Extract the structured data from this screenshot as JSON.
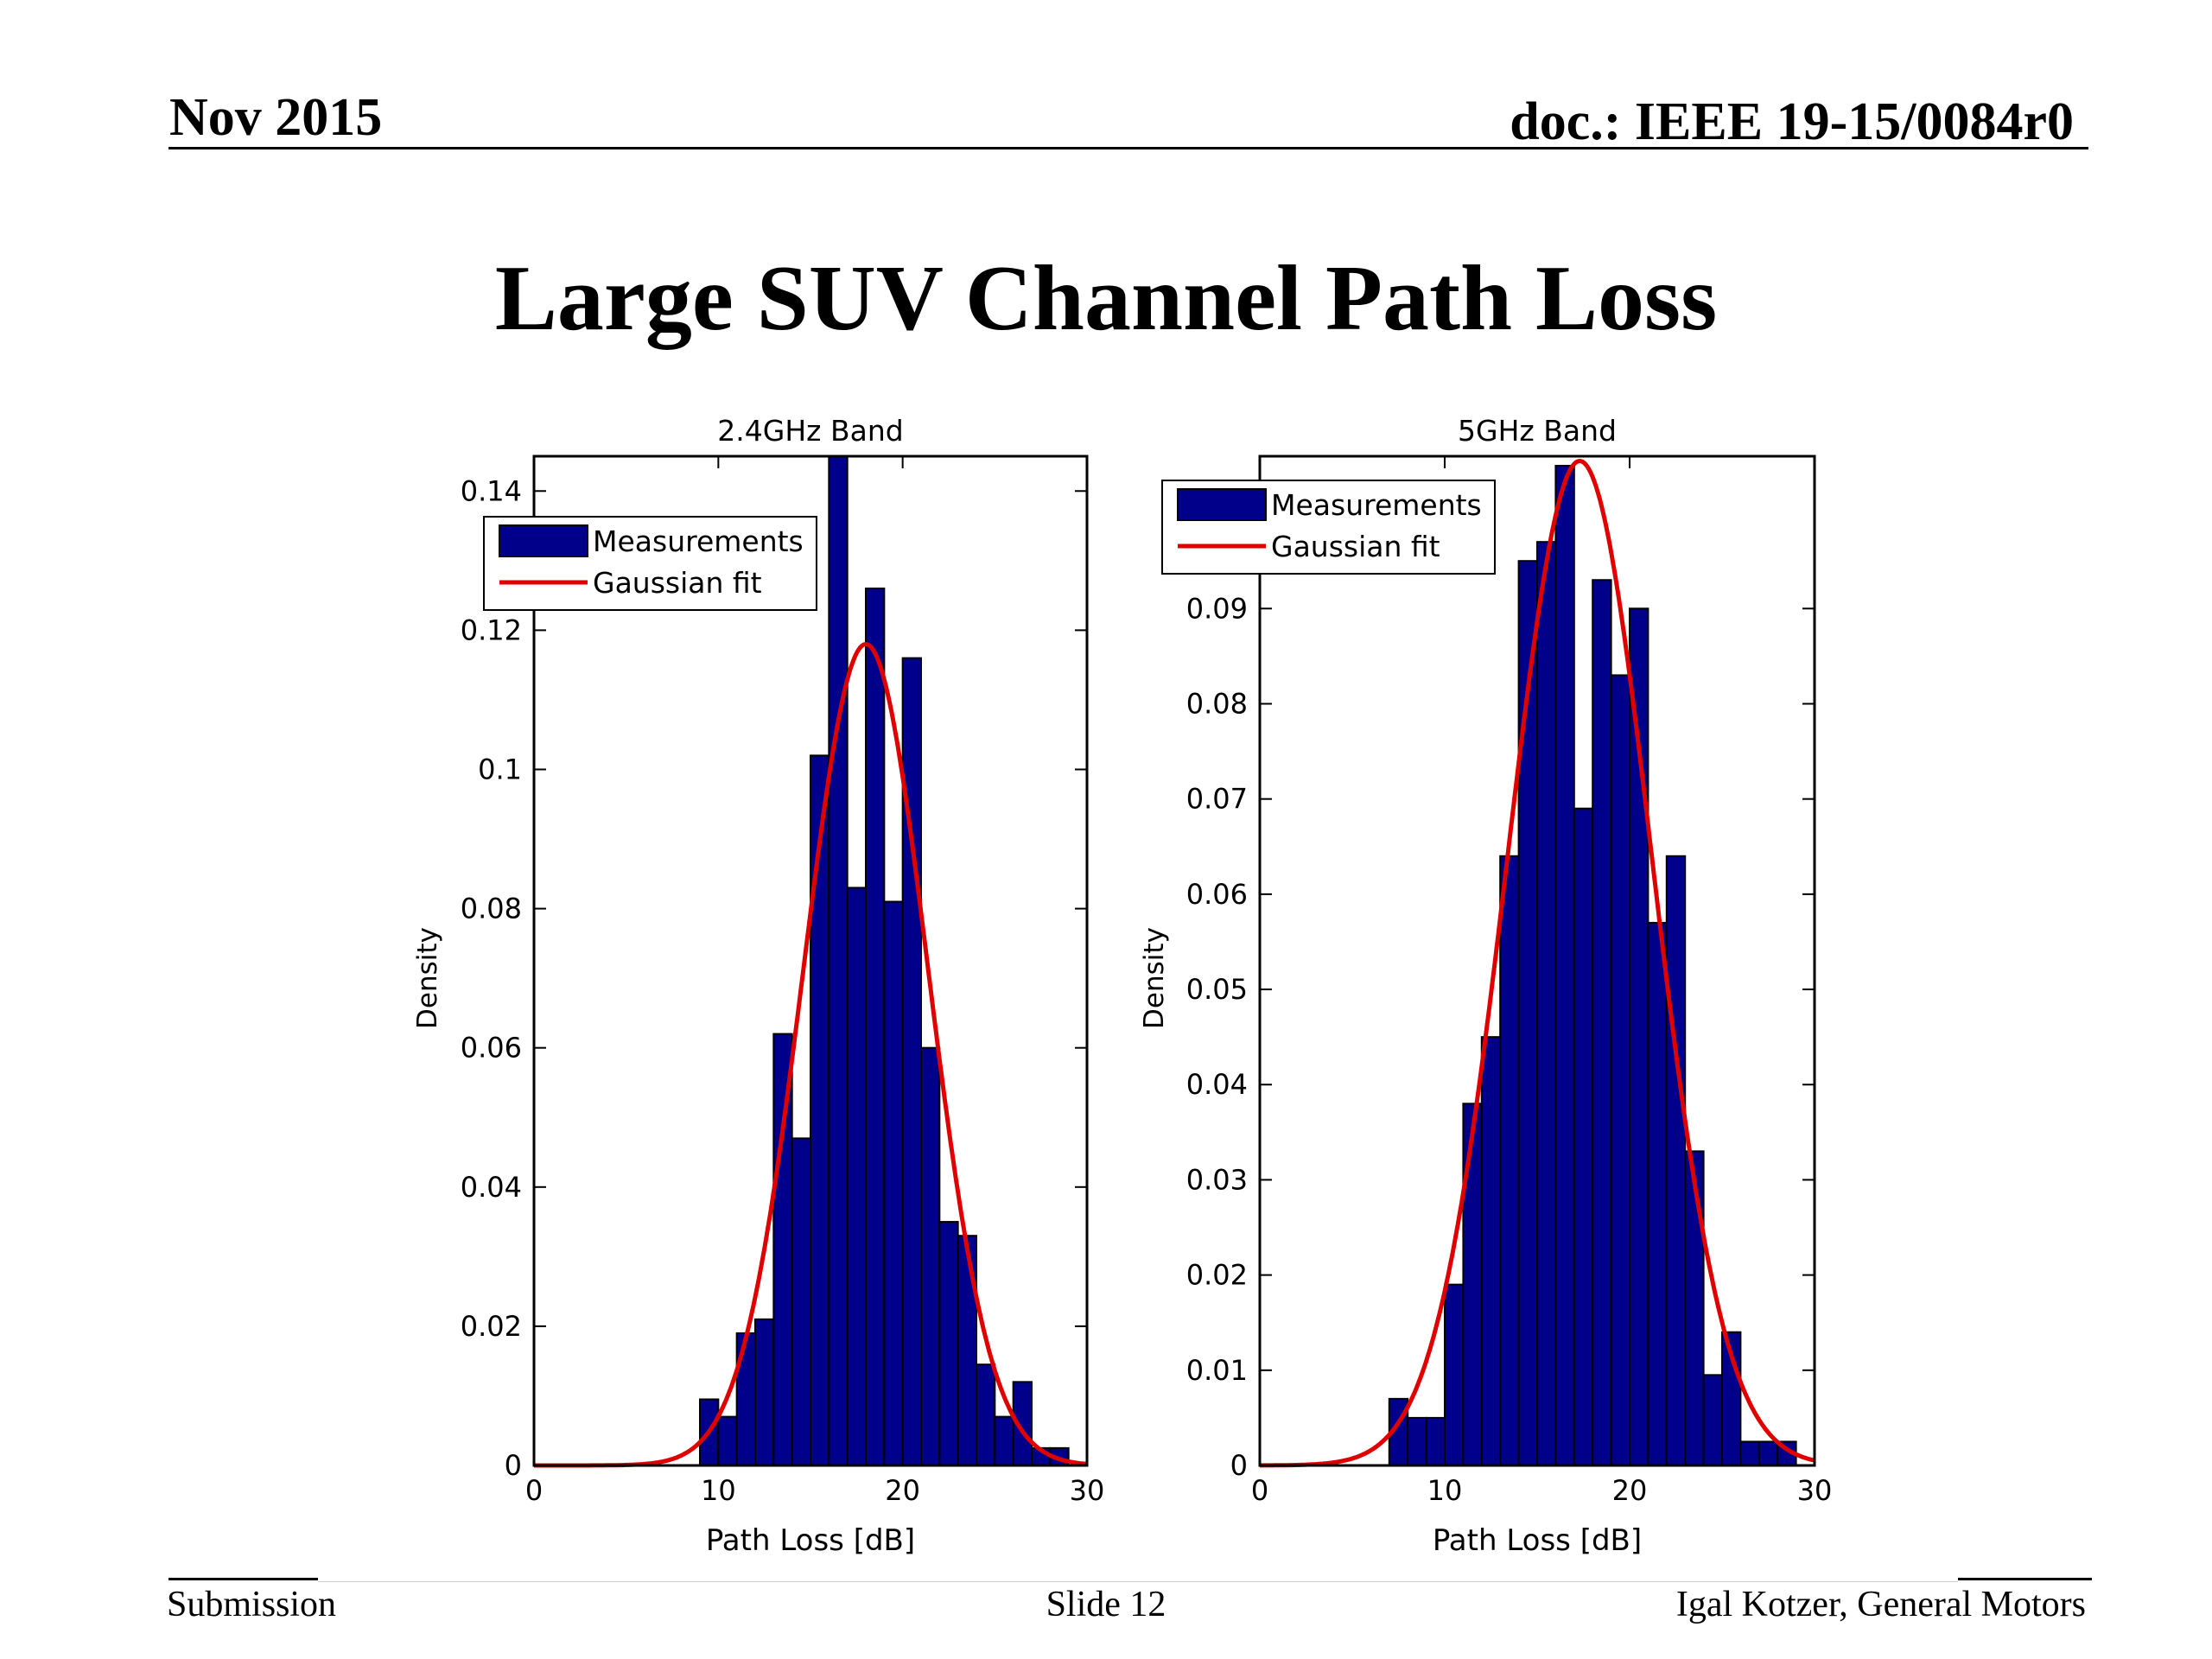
{
  "slide": {
    "header_left": "Nov 2015",
    "header_right": "doc.: IEEE 19-15/0084r0",
    "title": "Large SUV Channel Path Loss",
    "footer_left": "Submission",
    "footer_center": "Slide 12",
    "footer_right": "Igal Kotzer, General Motors"
  },
  "colors": {
    "bars": "#00008b",
    "fit": "#e00000",
    "axes": "#000000"
  },
  "chart_data": [
    {
      "type": "bar",
      "title": "2.4GHz Band",
      "xlabel": "Path Loss [dB]",
      "ylabel": "Density",
      "xlim": [
        0,
        30
      ],
      "ylim": [
        0,
        0.145
      ],
      "xticks": [
        0,
        10,
        20,
        30
      ],
      "yticks": [
        0,
        0.02,
        0.04,
        0.06,
        0.08,
        0.1,
        0.12,
        0.14
      ],
      "ytick_labels": [
        "0",
        "0.02",
        "0.04",
        "0.06",
        "0.08",
        "0.1",
        "0.12",
        "0.14"
      ],
      "legend": [
        "Measurements",
        "Gaussian fit"
      ],
      "legend_position": "top-left",
      "bin_width": 1,
      "bin_starts": [
        9,
        10,
        11,
        12,
        13,
        14,
        15,
        16,
        17,
        18,
        19,
        20,
        21,
        22,
        23,
        24,
        25,
        26,
        27,
        28
      ],
      "series": [
        {
          "name": "Measurements",
          "values": [
            0.0095,
            0.007,
            0.019,
            0.021,
            0.062,
            0.047,
            0.102,
            0.145,
            0.083,
            0.126,
            0.081,
            0.116,
            0.06,
            0.035,
            0.033,
            0.0145,
            0.007,
            0.012,
            0.0025,
            0.0025
          ]
        },
        {
          "name": "Gaussian fit",
          "mean": 18.0,
          "sigma": 3.37,
          "peak": 0.118
        }
      ]
    },
    {
      "type": "bar",
      "title": "5GHz Band",
      "xlabel": "Path Loss [dB]",
      "ylabel": "Density",
      "xlim": [
        0,
        30
      ],
      "ylim": [
        0,
        0.106
      ],
      "xticks": [
        0,
        10,
        20,
        30
      ],
      "yticks": [
        0,
        0.01,
        0.02,
        0.03,
        0.04,
        0.05,
        0.06,
        0.07,
        0.08,
        0.09
      ],
      "ytick_labels": [
        "0",
        "0.01",
        "0.02",
        "0.03",
        "0.04",
        "0.05",
        "0.06",
        "0.07",
        "0.08",
        "0.09"
      ],
      "legend": [
        "Measurements",
        "Gaussian fit"
      ],
      "legend_position": "top-left",
      "bin_width": 1,
      "bin_starts": [
        7,
        8,
        9,
        10,
        11,
        12,
        13,
        14,
        15,
        16,
        17,
        18,
        19,
        20,
        21,
        22,
        23,
        24,
        25,
        26,
        27,
        28
      ],
      "series": [
        {
          "name": "Measurements",
          "values": [
            0.007,
            0.005,
            0.005,
            0.019,
            0.038,
            0.045,
            0.064,
            0.095,
            0.097,
            0.105,
            0.069,
            0.093,
            0.083,
            0.09,
            0.057,
            0.064,
            0.033,
            0.0095,
            0.014,
            0.0025,
            0.0025,
            0.0025
          ]
        },
        {
          "name": "Gaussian fit",
          "mean": 17.3,
          "sigma": 3.9,
          "peak": 0.1055
        }
      ]
    }
  ]
}
